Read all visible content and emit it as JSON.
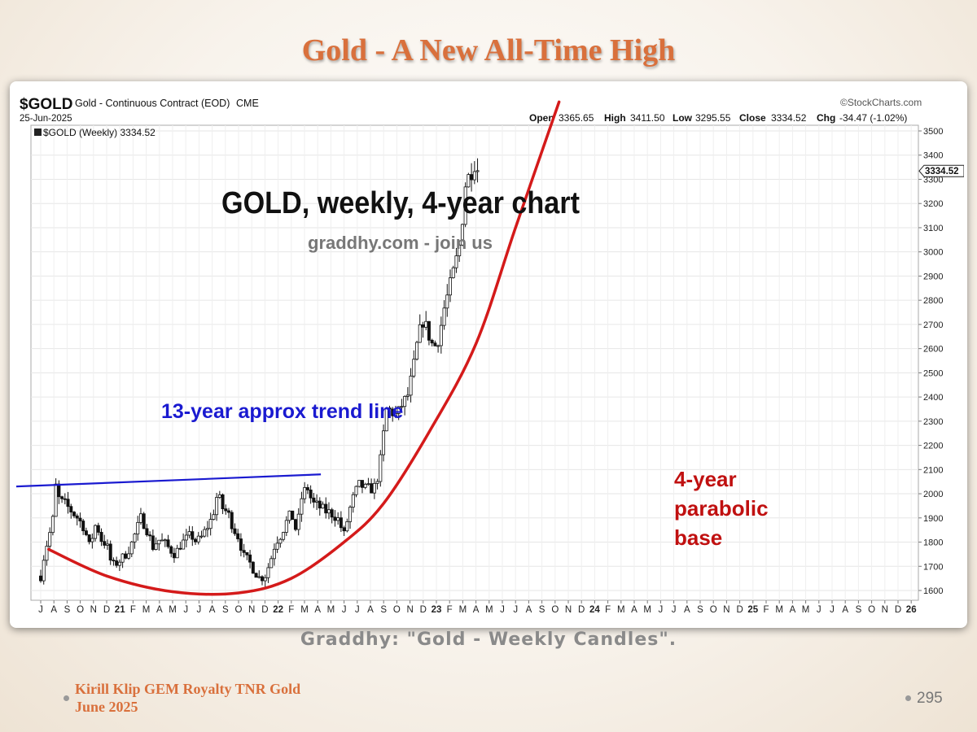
{
  "slide": {
    "title": "Gold - A New All-Time High",
    "caption": "Graddhy: \"Gold - Weekly Candles\".",
    "footer_line1": "Kirill Klip GEM Royalty TNR Gold",
    "footer_line2": "June 2025",
    "page_number": "295"
  },
  "chart_data": {
    "type": "candlestick",
    "symbol": "$GOLD",
    "description": "Gold - Continuous Contract (EOD)",
    "exchange": "CME",
    "date": "25-Jun-2025",
    "source": "©StockCharts.com",
    "legend_label": "$GOLD (Weekly) 3334.52",
    "ohlc": {
      "open_label": "Open",
      "open": "3365.65",
      "high_label": "High",
      "high": "3411.50",
      "low_label": "Low",
      "low": "3295.55",
      "close_label": "Close",
      "close": "3334.52",
      "chg_label": "Chg",
      "chg": "-34.47 (-1.02%)"
    },
    "last_price": "3334.52",
    "annotations": {
      "main_title": "GOLD, weekly, 4-year chart",
      "subtitle": "graddhy.com - join us",
      "trend_label": "13-year approx trend line",
      "parabola_label_1": "4-year",
      "parabola_label_2": "parabolic",
      "parabola_label_3": "base"
    },
    "ylim": [
      1600,
      3550
    ],
    "y_ticks": [
      1600,
      1700,
      1800,
      1900,
      2000,
      2100,
      2200,
      2300,
      2400,
      2500,
      2600,
      2700,
      2800,
      2900,
      3000,
      3100,
      3200,
      3300,
      3400,
      3500
    ],
    "x_ticks": [
      "J",
      "A",
      "S",
      "O",
      "N",
      "D",
      "21",
      "F",
      "M",
      "A",
      "M",
      "J",
      "J",
      "A",
      "S",
      "O",
      "N",
      "D",
      "22",
      "F",
      "M",
      "A",
      "M",
      "J",
      "J",
      "A",
      "S",
      "O",
      "N",
      "D",
      "23",
      "F",
      "M",
      "A",
      "M",
      "J",
      "J",
      "A",
      "S",
      "O",
      "N",
      "D",
      "24",
      "F",
      "M",
      "A",
      "M",
      "J",
      "J",
      "A",
      "S",
      "O",
      "N",
      "D",
      "25",
      "F",
      "M",
      "A",
      "M",
      "J",
      "J",
      "A",
      "S",
      "O",
      "N",
      "D",
      "26"
    ],
    "trend_line": {
      "start_month": 0,
      "start_value": 2030,
      "end_month": 20.5,
      "end_value": 2080
    },
    "parabola_points": [
      [
        0.6,
        1770
      ],
      [
        5,
        1660
      ],
      [
        10,
        1595
      ],
      [
        15,
        1590
      ],
      [
        19,
        1650
      ],
      [
        23,
        1800
      ],
      [
        26,
        1960
      ],
      [
        29.5,
        2260
      ],
      [
        33,
        2620
      ],
      [
        36,
        3100
      ],
      [
        39.3,
        3620
      ]
    ],
    "weekly_path": [
      [
        0,
        1660
      ],
      [
        0.2,
        1730
      ],
      [
        0.5,
        1800
      ],
      [
        0.9,
        1880
      ],
      [
        1.2,
        2060
      ],
      [
        1.4,
        1970
      ],
      [
        1.8,
        1960
      ],
      [
        2.3,
        1930
      ],
      [
        2.8,
        1900
      ],
      [
        3.3,
        1860
      ],
      [
        3.7,
        1780
      ],
      [
        4.2,
        1880
      ],
      [
        4.6,
        1810
      ],
      [
        5.0,
        1790
      ],
      [
        5.4,
        1700
      ],
      [
        5.9,
        1720
      ],
      [
        6.3,
        1740
      ],
      [
        6.8,
        1780
      ],
      [
        7.2,
        1840
      ],
      [
        7.6,
        1900
      ],
      [
        8.0,
        1860
      ],
      [
        8.5,
        1780
      ],
      [
        8.9,
        1810
      ],
      [
        9.3,
        1800
      ],
      [
        9.8,
        1770
      ],
      [
        10.2,
        1750
      ],
      [
        10.6,
        1790
      ],
      [
        11.0,
        1810
      ],
      [
        11.4,
        1830
      ],
      [
        11.8,
        1800
      ],
      [
        12.2,
        1820
      ],
      [
        12.6,
        1860
      ],
      [
        13.0,
        1900
      ],
      [
        13.4,
        2000
      ],
      [
        13.8,
        1940
      ],
      [
        14.2,
        1920
      ],
      [
        14.6,
        1860
      ],
      [
        15.0,
        1820
      ],
      [
        15.4,
        1740
      ],
      [
        15.8,
        1720
      ],
      [
        16.2,
        1680
      ],
      [
        16.6,
        1650
      ],
      [
        17.0,
        1660
      ],
      [
        17.4,
        1720
      ],
      [
        17.8,
        1800
      ],
      [
        18.2,
        1830
      ],
      [
        18.6,
        1880
      ],
      [
        19.0,
        1920
      ],
      [
        19.4,
        1840
      ],
      [
        19.8,
        1990
      ],
      [
        20.2,
        2030
      ],
      [
        20.6,
        1960
      ],
      [
        21.0,
        1950
      ],
      [
        21.5,
        1930
      ],
      [
        22.0,
        1920
      ],
      [
        22.5,
        1900
      ],
      [
        23.0,
        1830
      ],
      [
        23.4,
        1930
      ],
      [
        23.8,
        2000
      ],
      [
        24.2,
        2040
      ],
      [
        24.6,
        2020
      ],
      [
        25.0,
        2020
      ],
      [
        25.4,
        2030
      ],
      [
        25.8,
        2150
      ],
      [
        26.2,
        2350
      ],
      [
        26.6,
        2340
      ],
      [
        27.0,
        2320
      ],
      [
        27.4,
        2370
      ],
      [
        27.8,
        2400
      ],
      [
        28.2,
        2500
      ],
      [
        28.6,
        2640
      ],
      [
        29.0,
        2720
      ],
      [
        29.4,
        2660
      ],
      [
        29.8,
        2600
      ],
      [
        30.2,
        2650
      ],
      [
        30.6,
        2770
      ],
      [
        31.0,
        2850
      ],
      [
        31.4,
        2940
      ],
      [
        31.8,
        3040
      ],
      [
        32.2,
        3280
      ],
      [
        32.6,
        3330
      ],
      [
        32.9,
        3370
      ],
      [
        33.2,
        3334
      ]
    ]
  }
}
